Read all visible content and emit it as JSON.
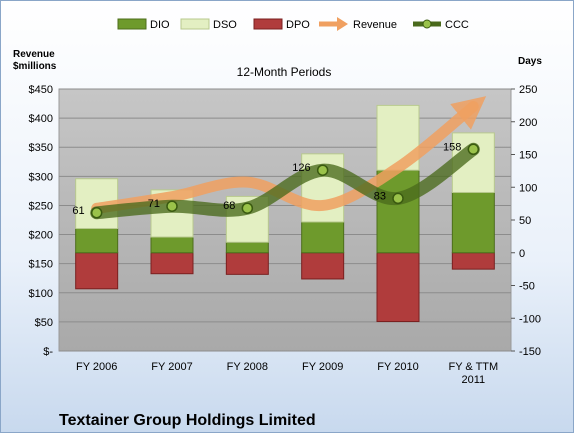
{
  "chart_data": {
    "type": "bar",
    "title": "12-Month Periods",
    "company": "Textainer Group Holdings Limited",
    "ylabel_left": "Revenue\n$millions",
    "ylabel_right": "Days",
    "categories": [
      "FY 2006",
      "FY 2007",
      "FY 2008",
      "FY 2009",
      "FY 2010",
      "FY & TTM\n2011"
    ],
    "left_axis": {
      "min": 0,
      "max": 450,
      "step": 50,
      "ticks": [
        "$-",
        "$50",
        "$100",
        "$150",
        "$200",
        "$250",
        "$300",
        "$350",
        "$400",
        "$450"
      ]
    },
    "right_axis": {
      "min": -150,
      "max": 250,
      "step": 50,
      "ticks": [
        "-150",
        "-100",
        "-50",
        "0",
        "50",
        "100",
        "150",
        "200",
        "250"
      ]
    },
    "legend_position": "top",
    "legend": [
      "DIO",
      "DSO",
      "DPO",
      "Revenue",
      "CCC"
    ],
    "series": [
      {
        "name": "DIO",
        "axis": "right",
        "values": [
          37,
          24,
          16,
          47,
          126,
          92
        ],
        "color": "#6e9a2c"
      },
      {
        "name": "DSO",
        "axis": "right",
        "values": [
          76,
          72,
          70,
          104,
          99,
          91
        ],
        "color": "#e3efc2"
      },
      {
        "name": "DPO",
        "axis": "right",
        "values": [
          -55,
          -32,
          -33,
          -40,
          -105,
          -25
        ],
        "color": "#b03c3c"
      },
      {
        "name": "Revenue",
        "axis": "left",
        "values": [
          245,
          265,
          290,
          250,
          315,
          420
        ],
        "color": "#f0a060"
      },
      {
        "name": "CCC",
        "axis": "right",
        "values": [
          61,
          71,
          68,
          126,
          83,
          158
        ],
        "color": "#4a6a1c"
      }
    ],
    "ccc_labels": [
      "61",
      "71",
      "68",
      "126",
      "83",
      "158"
    ],
    "grid": true
  }
}
